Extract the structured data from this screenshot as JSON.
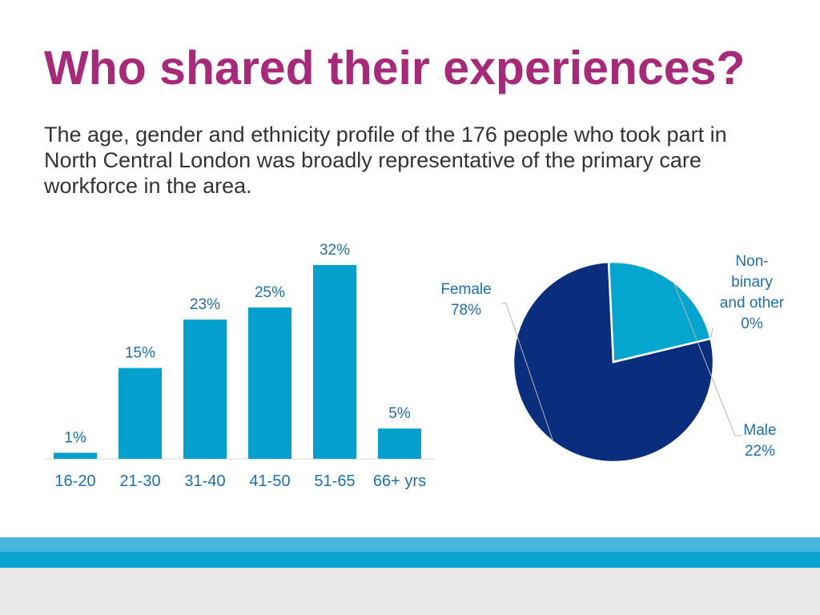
{
  "title": "Who shared their experiences?",
  "intro": "The age, gender and ethnicity profile of the 176 people who took part in North Central London was broadly representative of the primary care workforce in the area.",
  "colors": {
    "title": "#a8287a",
    "bar": "#04a1cf",
    "label": "#1a6fb5",
    "pie_female": "#0a2d7e",
    "pie_male": "#04a6cf",
    "pie_nonbinary": "#5fb0dd"
  },
  "chart_data": [
    {
      "type": "bar",
      "categories": [
        "16-20",
        "21-30",
        "31-40",
        "41-50",
        "51-65",
        "66+ yrs"
      ],
      "values": [
        1,
        15,
        23,
        25,
        32,
        5
      ],
      "data_labels": [
        "1%",
        "15%",
        "23%",
        "25%",
        "32%",
        "5%"
      ],
      "ylim": [
        0,
        32
      ]
    },
    {
      "type": "pie",
      "slices": [
        {
          "label_lines": [
            "Female",
            "78%"
          ],
          "value": 78
        },
        {
          "label_lines": [
            "Male",
            "22%"
          ],
          "value": 22
        },
        {
          "label_lines": [
            "Non-",
            "binary",
            "and other",
            "0%"
          ],
          "value": 0
        }
      ]
    }
  ]
}
